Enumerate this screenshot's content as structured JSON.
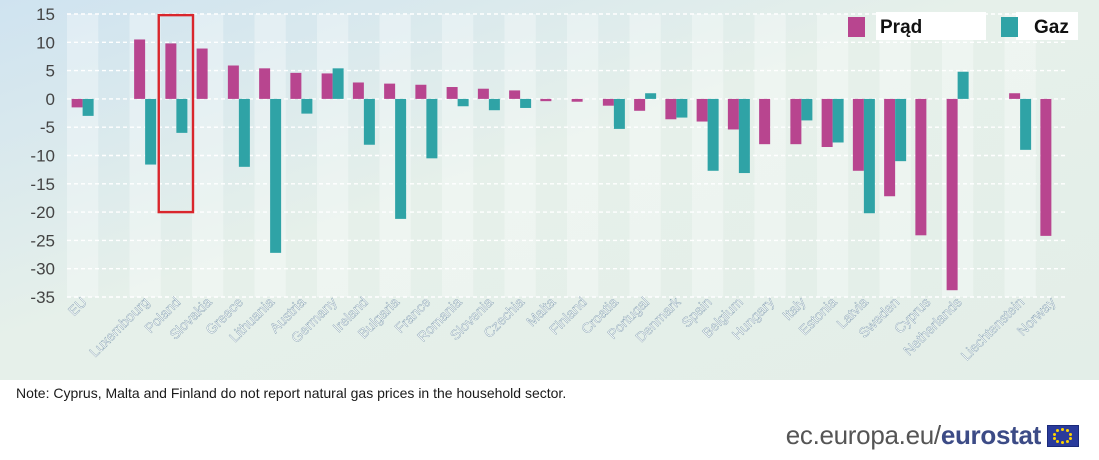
{
  "chart_data": {
    "type": "bar",
    "title": "",
    "xlabel": "",
    "ylabel": "",
    "ylim": [
      -35,
      15
    ],
    "yticks": [
      15,
      10,
      5,
      0,
      -5,
      -10,
      -15,
      -20,
      -25,
      -30,
      -35
    ],
    "legend_position": "top-right",
    "highlight_category": "Poland",
    "categories": [
      "EU",
      "",
      "Luxembourg",
      "Poland",
      "Slovakia",
      "Greece",
      "Lithuania",
      "Austria",
      "Germany",
      "Ireland",
      "Bulgaria",
      "France",
      "Romania",
      "Slovenia",
      "Czechia",
      "Malta",
      "Finland",
      "Croatia",
      "Portugal",
      "Denmark",
      "Spain",
      "Belgium",
      "Hungary",
      "Italy",
      "Estonia",
      "Latvia",
      "Sweden",
      "Cyprus",
      "Netherlands",
      "",
      "Liechtenstein",
      "Norway"
    ],
    "series": [
      {
        "name": "Prąd",
        "color": "#b8458f",
        "values": [
          -1.5,
          null,
          10.5,
          9.8,
          8.9,
          5.9,
          5.4,
          4.6,
          4.5,
          2.9,
          2.7,
          2.5,
          2.1,
          1.8,
          1.5,
          -0.4,
          -0.5,
          -1.2,
          -2.1,
          -3.6,
          -4.0,
          -5.4,
          -8.0,
          -8.0,
          -8.5,
          -12.7,
          -17.2,
          -24.1,
          -33.8,
          null,
          1.0,
          -24.2
        ]
      },
      {
        "name": "Gaz",
        "color": "#2fa3a6",
        "values": [
          -3.0,
          null,
          -11.6,
          -6.0,
          null,
          -12.0,
          -27.2,
          -2.6,
          5.4,
          -8.1,
          -21.2,
          -10.5,
          -1.3,
          -2.0,
          -1.6,
          null,
          null,
          -5.3,
          1.0,
          -3.3,
          -12.7,
          -13.1,
          null,
          -3.8,
          -7.7,
          -20.2,
          -11.0,
          null,
          4.8,
          null,
          -9.0,
          null
        ]
      }
    ]
  },
  "note": "Note: Cyprus, Malta and Finland do not report natural gas prices in the household sector.",
  "footer": {
    "url_text": "ec.europa.eu/",
    "brand": "eurostat"
  },
  "colors": {
    "highlight": "#d9262c",
    "grid": "#ffffff"
  }
}
